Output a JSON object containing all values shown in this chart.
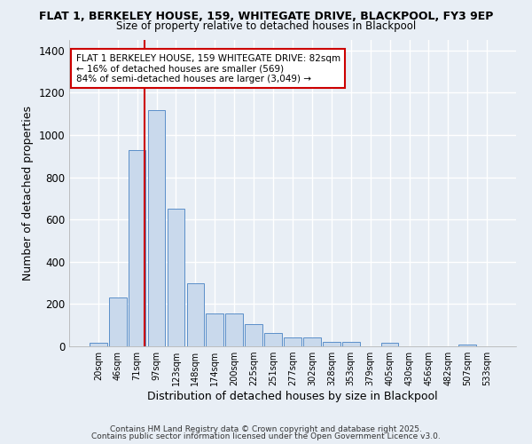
{
  "title_line1": "FLAT 1, BERKELEY HOUSE, 159, WHITEGATE DRIVE, BLACKPOOL, FY3 9EP",
  "title_line2": "Size of property relative to detached houses in Blackpool",
  "xlabel": "Distribution of detached houses by size in Blackpool",
  "ylabel": "Number of detached properties",
  "categories": [
    "20sqm",
    "46sqm",
    "71sqm",
    "97sqm",
    "123sqm",
    "148sqm",
    "174sqm",
    "200sqm",
    "225sqm",
    "251sqm",
    "277sqm",
    "302sqm",
    "328sqm",
    "353sqm",
    "379sqm",
    "405sqm",
    "430sqm",
    "456sqm",
    "482sqm",
    "507sqm",
    "533sqm"
  ],
  "values": [
    15,
    230,
    930,
    1120,
    650,
    300,
    155,
    155,
    105,
    65,
    40,
    40,
    20,
    20,
    0,
    15,
    0,
    0,
    0,
    10,
    0
  ],
  "bar_color": "#c9d9ec",
  "bar_edge_color": "#5b8fc9",
  "red_line_x": 2.4,
  "highlight_color": "#cc0000",
  "annotation_text": "FLAT 1 BERKELEY HOUSE, 159 WHITEGATE DRIVE: 82sqm\n← 16% of detached houses are smaller (569)\n84% of semi-detached houses are larger (3,049) →",
  "annotation_box_color": "#ffffff",
  "annotation_box_edge": "#cc0000",
  "bg_color": "#e8eef5",
  "grid_color": "#d0d8e8",
  "footer1": "Contains HM Land Registry data © Crown copyright and database right 2025.",
  "footer2": "Contains public sector information licensed under the Open Government Licence v3.0.",
  "ylim": [
    0,
    1450
  ],
  "yticks": [
    0,
    200,
    400,
    600,
    800,
    1000,
    1200,
    1400
  ]
}
